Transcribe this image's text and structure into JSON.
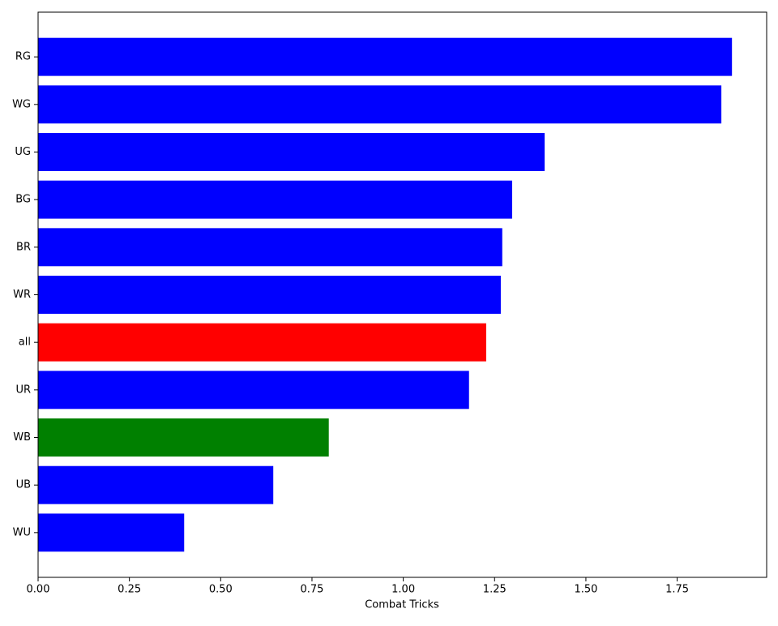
{
  "chart_data": {
    "type": "barh",
    "xlabel": "Combat Tricks",
    "categories": [
      "RG",
      "WG",
      "UG",
      "BG",
      "BR",
      "WR",
      "all",
      "UR",
      "WB",
      "UB",
      "WU"
    ],
    "values": [
      1.9,
      1.871,
      1.387,
      1.298,
      1.271,
      1.267,
      1.227,
      1.18,
      0.796,
      0.644,
      0.4
    ],
    "colors": [
      "#0000ff",
      "#0000ff",
      "#0000ff",
      "#0000ff",
      "#0000ff",
      "#0000ff",
      "#ff0000",
      "#0000ff",
      "#008000",
      "#0000ff",
      "#0000ff"
    ],
    "xlim": [
      0,
      1.995
    ],
    "xticks": [
      {
        "value": 0,
        "label": "0.00"
      },
      {
        "value": 0.25,
        "label": "0.25"
      },
      {
        "value": 0.5,
        "label": "0.50"
      },
      {
        "value": 0.75,
        "label": "0.75"
      },
      {
        "value": 1,
        "label": "1.00"
      },
      {
        "value": 1.25,
        "label": "1.25"
      },
      {
        "value": 1.5,
        "label": "1.50"
      },
      {
        "value": 1.75,
        "label": "1.75"
      }
    ],
    "grid": false
  }
}
